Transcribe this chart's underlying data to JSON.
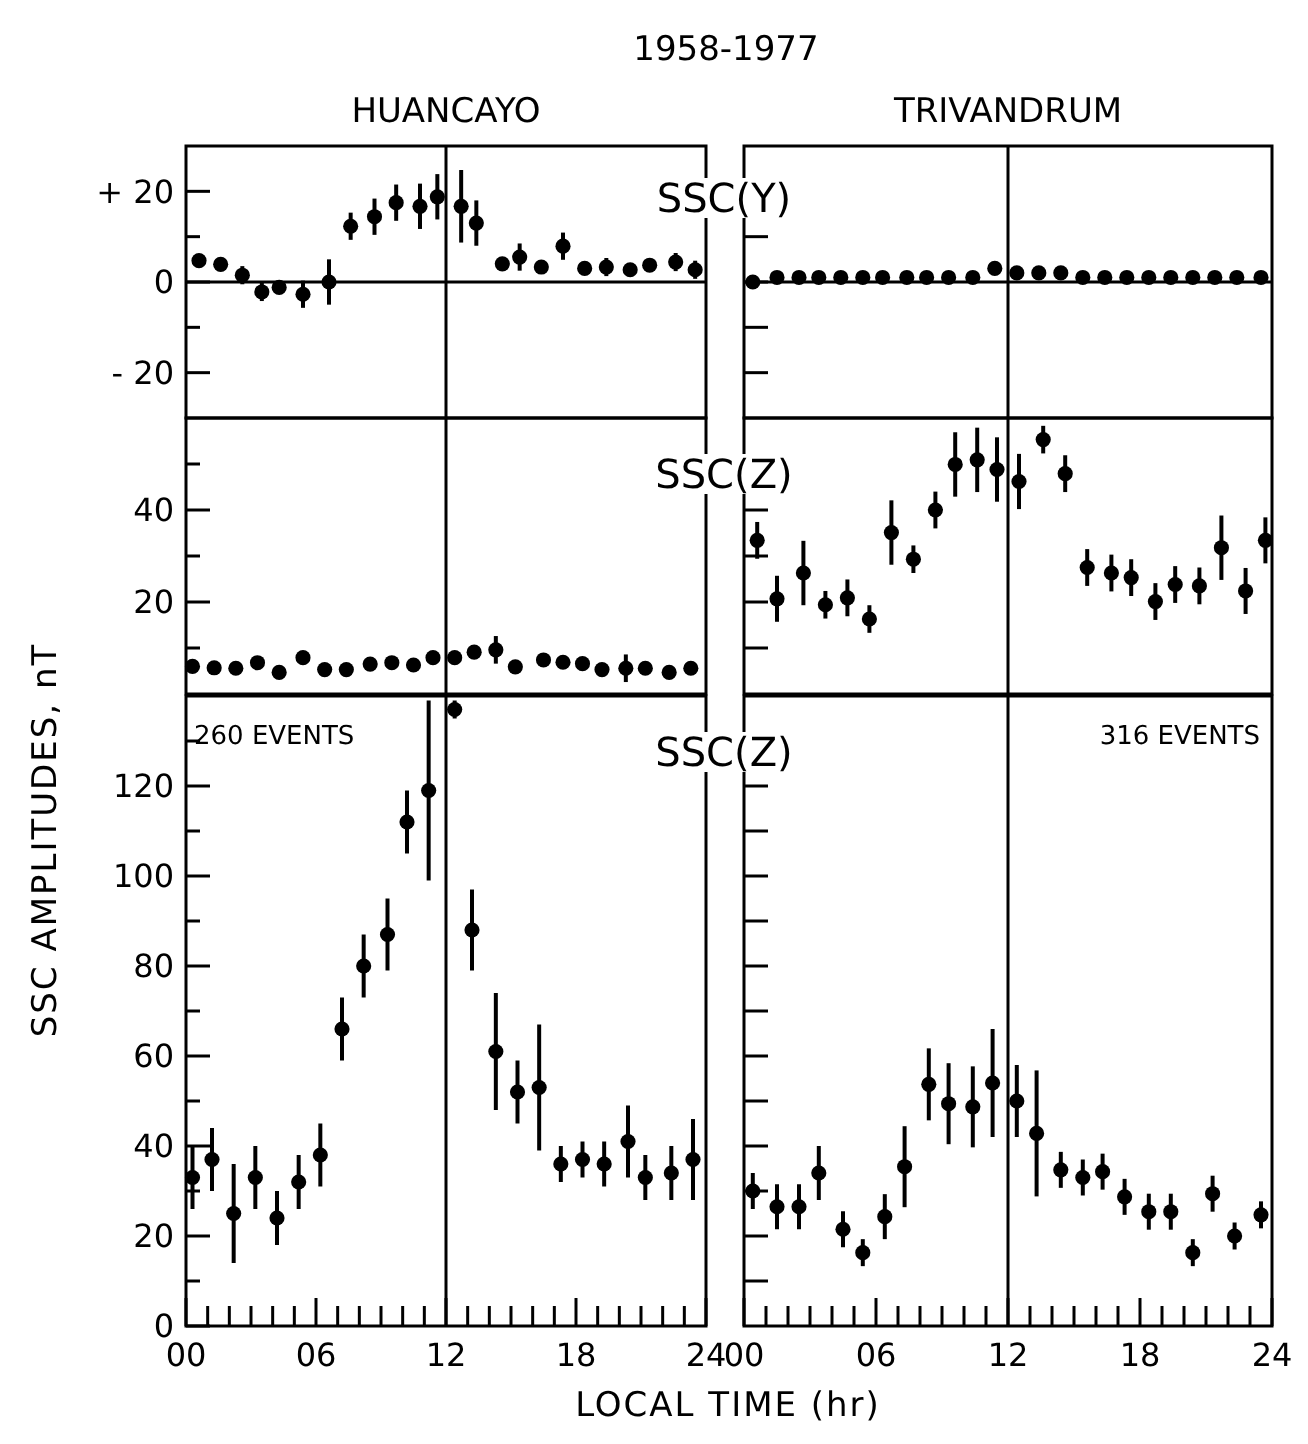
{
  "chart_data": [
    {
      "type": "scatter",
      "title": "HUANCAYO",
      "annotations": [
        "1958-1977",
        "SSC(Y)"
      ],
      "xlim": [
        0,
        24
      ],
      "ylim": [
        -30,
        30
      ],
      "yticks": [
        {
          "value": 20,
          "label": "+ 20"
        },
        {
          "value": 10,
          "label": null
        },
        0,
        {
          "value": -10,
          "label": null
        },
        {
          "value": -20,
          "label": "- 20"
        }
      ],
      "tick_labels": "y",
      "marker": "circle",
      "ref_lines": [
        {
          "axis": "x",
          "value": 12,
          "color": "#000000"
        },
        {
          "axis": "y",
          "value": 0,
          "color": "#000000"
        }
      ],
      "series": [
        {
          "color": "#000000",
          "x": [
            0.6,
            1.6,
            2.6,
            3.5,
            4.3,
            5.4,
            6.6,
            7.6,
            8.7,
            9.7,
            10.8,
            11.6,
            12.7,
            13.4,
            14.6,
            15.4,
            16.4,
            17.4,
            18.4,
            19.4,
            20.5,
            21.4,
            22.6,
            23.5
          ],
          "values": [
            4.7,
            3.9,
            1.5,
            -2.2,
            -1.2,
            -2.7,
            0,
            12.3,
            14.4,
            17.5,
            16.7,
            18.8,
            16.7,
            13,
            4,
            5.5,
            3.3,
            7.9,
            3,
            3.3,
            2.7,
            3.7,
            4.4,
            2.7
          ],
          "errors": [
            1,
            1,
            2,
            2,
            1,
            3,
            5,
            3,
            4,
            4,
            5,
            5,
            8,
            5,
            1,
            3,
            1,
            3,
            1,
            2,
            1,
            1,
            2,
            2
          ]
        }
      ]
    },
    {
      "type": "scatter",
      "title": "TRIVANDRUM",
      "xlim": [
        0,
        24
      ],
      "ylim": [
        -30,
        30
      ],
      "yticks": [
        10,
        0,
        -10,
        -20
      ],
      "tick_labels": false,
      "marker": "circle",
      "ref_lines": [
        {
          "axis": "x",
          "value": 12,
          "color": "#000000"
        },
        {
          "axis": "y",
          "value": 0,
          "color": "#000000"
        }
      ],
      "series": [
        {
          "color": "#000000",
          "x": [
            0.4,
            1.5,
            2.5,
            3.4,
            4.4,
            5.4,
            6.3,
            7.4,
            8.3,
            9.3,
            10.4,
            11.4,
            12.4,
            13.4,
            14.4,
            15.4,
            16.4,
            17.4,
            18.4,
            19.4,
            20.4,
            21.4,
            22.4,
            23.5
          ],
          "values": [
            0,
            1,
            1,
            1,
            1,
            1,
            1,
            1,
            1,
            1,
            1,
            3,
            2,
            2,
            2,
            1,
            1,
            1,
            1,
            1,
            1,
            1,
            1,
            1
          ]
        }
      ]
    },
    {
      "type": "scatter",
      "annotations": [
        "SSC(Z)"
      ],
      "xlim": [
        0,
        24
      ],
      "ylim": [
        0,
        60
      ],
      "yticks": [
        {
          "value": 10,
          "label": null
        },
        20,
        {
          "value": 30,
          "label": null
        },
        40,
        {
          "value": 50,
          "label": null
        }
      ],
      "tick_labels": "y",
      "marker": "circle",
      "ref_lines": [
        {
          "axis": "x",
          "value": 12,
          "color": "#000000"
        }
      ],
      "series": [
        {
          "color": "#000000",
          "x": [
            0.3,
            1.3,
            2.3,
            3.3,
            4.3,
            5.4,
            6.4,
            7.4,
            8.5,
            9.5,
            10.5,
            11.4,
            12.4,
            13.3,
            14.3,
            15.2,
            16.5,
            17.4,
            18.3,
            19.2,
            20.3,
            21.2,
            22.3,
            23.3
          ],
          "values": [
            6,
            5.7,
            5.6,
            6.8,
            4.7,
            7.9,
            5.3,
            5.3,
            6.5,
            6.8,
            6.3,
            7.9,
            7.9,
            9.1,
            9.6,
            5.9,
            7.4,
            6.9,
            6.6,
            5.3,
            5.6,
            5.6,
            4.7,
            5.6
          ],
          "errors": [
            1,
            1,
            1,
            1,
            1,
            1,
            1,
            1,
            1,
            1,
            1,
            1,
            1,
            1,
            3,
            1,
            1,
            1,
            1,
            1,
            3,
            1,
            1,
            1
          ]
        }
      ]
    },
    {
      "type": "scatter",
      "xlim": [
        0,
        24
      ],
      "ylim": [
        0,
        60
      ],
      "yticks": [
        10,
        20,
        30,
        40
      ],
      "tick_labels": false,
      "marker": "circle",
      "ref_lines": [
        {
          "axis": "x",
          "value": 12,
          "color": "#000000"
        }
      ],
      "series": [
        {
          "color": "#000000",
          "x": [
            0.6,
            1.5,
            2.7,
            3.7,
            4.7,
            5.7,
            6.7,
            7.7,
            8.7,
            9.6,
            10.6,
            11.5,
            12.5,
            13.6,
            14.6,
            15.6,
            16.7,
            17.6,
            18.7,
            19.6,
            20.7,
            21.7,
            22.8,
            23.7
          ],
          "values": [
            33.4,
            20.7,
            26.3,
            19.4,
            20.9,
            16.3,
            35.1,
            29.3,
            40,
            49.9,
            50.9,
            48.8,
            46.2,
            55.3,
            47.9,
            27.5,
            26.3,
            25.3,
            20.1,
            23.8,
            23.5,
            31.8,
            22.4,
            33.4
          ],
          "errors": [
            4,
            5,
            7,
            3,
            4,
            3,
            7,
            3,
            4,
            7,
            7,
            7,
            6,
            3,
            4,
            4,
            4,
            4,
            4,
            4,
            4,
            7,
            5,
            5
          ]
        }
      ]
    },
    {
      "type": "scatter",
      "xlabel": "LOCAL TIME (hr)",
      "ylabel": "SSC AMPLITUDES, nT",
      "annotations": [
        "260 EVENTS",
        "SSC(Z)"
      ],
      "xlim": [
        0,
        24
      ],
      "ylim": [
        0,
        140
      ],
      "xticks": [
        {
          "value": 0,
          "label": "00"
        },
        {
          "value": 1,
          "label": null
        },
        {
          "value": 2,
          "label": null
        },
        {
          "value": 3,
          "label": null
        },
        {
          "value": 4,
          "label": null
        },
        {
          "value": 5,
          "label": null
        },
        {
          "value": 6,
          "label": "06"
        },
        {
          "value": 7,
          "label": null
        },
        {
          "value": 8,
          "label": null
        },
        {
          "value": 9,
          "label": null
        },
        {
          "value": 10,
          "label": null
        },
        {
          "value": 11,
          "label": null
        },
        12,
        {
          "value": 13,
          "label": null
        },
        {
          "value": 14,
          "label": null
        },
        {
          "value": 15,
          "label": null
        },
        {
          "value": 16,
          "label": null
        },
        {
          "value": 17,
          "label": null
        },
        18,
        {
          "value": 19,
          "label": null
        },
        {
          "value": 20,
          "label": null
        },
        {
          "value": 21,
          "label": null
        },
        {
          "value": 22,
          "label": null
        },
        {
          "value": 23,
          "label": null
        },
        24
      ],
      "yticks": [
        0,
        {
          "value": 10,
          "label": null
        },
        20,
        {
          "value": 30,
          "label": null
        },
        40,
        {
          "value": 50,
          "label": null
        },
        60,
        {
          "value": 70,
          "label": null
        },
        80,
        {
          "value": 90,
          "label": null
        },
        100,
        {
          "value": 110,
          "label": null
        },
        120,
        {
          "value": 130,
          "label": null
        }
      ],
      "marker": "circle",
      "ref_lines": [
        {
          "axis": "x",
          "value": 12,
          "color": "#000000"
        }
      ],
      "series": [
        {
          "color": "#000000",
          "x": [
            0.3,
            1.2,
            2.2,
            3.2,
            4.2,
            5.2,
            6.2,
            7.2,
            8.2,
            9.3,
            10.2,
            11.2,
            12.4,
            13.2,
            14.3,
            15.3,
            16.3,
            17.3,
            18.3,
            19.3,
            20.4,
            21.2,
            22.4,
            23.4
          ],
          "values": [
            33,
            37,
            25,
            33,
            24,
            32,
            38,
            66,
            80,
            87,
            112,
            119,
            137,
            88,
            61,
            52,
            53,
            36,
            37,
            36,
            41,
            33,
            34,
            37
          ],
          "errors": [
            7,
            7,
            11,
            7,
            6,
            6,
            7,
            7,
            7,
            8,
            7,
            20,
            2,
            9,
            13,
            7,
            14,
            4,
            4,
            5,
            8,
            5,
            6,
            9
          ]
        }
      ]
    },
    {
      "type": "scatter",
      "annotations": [
        "316 EVENTS"
      ],
      "xlim": [
        0,
        24
      ],
      "ylim": [
        0,
        140
      ],
      "xticks": [
        {
          "value": 0,
          "label": "00"
        },
        {
          "value": 1,
          "label": null
        },
        {
          "value": 2,
          "label": null
        },
        {
          "value": 3,
          "label": null
        },
        {
          "value": 4,
          "label": null
        },
        {
          "value": 5,
          "label": null
        },
        {
          "value": 6,
          "label": "06"
        },
        {
          "value": 7,
          "label": null
        },
        {
          "value": 8,
          "label": null
        },
        {
          "value": 9,
          "label": null
        },
        {
          "value": 10,
          "label": null
        },
        {
          "value": 11,
          "label": null
        },
        12,
        {
          "value": 13,
          "label": null
        },
        {
          "value": 14,
          "label": null
        },
        {
          "value": 15,
          "label": null
        },
        {
          "value": 16,
          "label": null
        },
        {
          "value": 17,
          "label": null
        },
        18,
        {
          "value": 19,
          "label": null
        },
        {
          "value": 20,
          "label": null
        },
        {
          "value": 21,
          "label": null
        },
        {
          "value": 22,
          "label": null
        },
        {
          "value": 23,
          "label": null
        },
        24
      ],
      "yticks": [
        10,
        20,
        30,
        40,
        50,
        60,
        70,
        80,
        90,
        100,
        110,
        120
      ],
      "tick_labels": "x",
      "marker": "circle",
      "ref_lines": [
        {
          "axis": "x",
          "value": 12,
          "color": "#000000"
        }
      ],
      "series": [
        {
          "color": "#000000",
          "x": [
            0.4,
            1.5,
            2.5,
            3.4,
            4.5,
            5.4,
            6.4,
            7.3,
            8.4,
            9.3,
            10.4,
            11.3,
            12.4,
            13.3,
            14.4,
            15.4,
            16.3,
            17.3,
            18.4,
            19.4,
            20.4,
            21.3,
            22.3,
            23.5
          ],
          "values": [
            30,
            26.5,
            26.5,
            34,
            21.5,
            16.3,
            24.3,
            35.4,
            53.7,
            49.4,
            48.7,
            54,
            50,
            42.8,
            34.7,
            33,
            34.3,
            28.7,
            25.4,
            25.4,
            16.3,
            29.4,
            20,
            24.7
          ],
          "errors": [
            4,
            5,
            5,
            6,
            4,
            3,
            5,
            9,
            8,
            9,
            9,
            12,
            8,
            14,
            4,
            4,
            4,
            4,
            4,
            4,
            3,
            4,
            3,
            3
          ]
        }
      ]
    }
  ]
}
